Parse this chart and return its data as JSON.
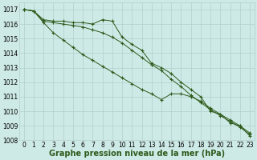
{
  "line1": [
    1017.0,
    1016.9,
    1016.3,
    1016.2,
    1016.2,
    1016.1,
    1016.1,
    1016.0,
    1016.3,
    1016.2,
    1015.1,
    1014.6,
    1014.2,
    1013.3,
    1013.0,
    1012.6,
    1012.0,
    1011.5,
    1011.0,
    1010.0,
    1009.8,
    1009.2,
    1009.0,
    1008.3
  ],
  "line2": [
    1017.0,
    1016.9,
    1016.2,
    1016.1,
    1016.0,
    1015.9,
    1015.8,
    1015.6,
    1015.4,
    1015.1,
    1014.7,
    1014.2,
    1013.7,
    1013.2,
    1012.8,
    1012.2,
    1011.7,
    1011.1,
    1010.6,
    1010.1,
    1009.7,
    1009.3,
    1008.9,
    1008.4
  ],
  "line3": [
    1017.0,
    1016.9,
    1016.1,
    1015.4,
    1014.9,
    1014.4,
    1013.9,
    1013.5,
    1013.1,
    1012.7,
    1012.3,
    1011.9,
    1011.5,
    1011.2,
    1010.8,
    1011.2,
    1011.2,
    1011.0,
    1010.7,
    1010.2,
    1009.8,
    1009.4,
    1009.0,
    1008.5
  ],
  "x": [
    0,
    1,
    2,
    3,
    4,
    5,
    6,
    7,
    8,
    9,
    10,
    11,
    12,
    13,
    14,
    15,
    16,
    17,
    18,
    19,
    20,
    21,
    22,
    23
  ],
  "ylim": [
    1008,
    1017.5
  ],
  "yticks": [
    1008,
    1009,
    1010,
    1011,
    1012,
    1013,
    1014,
    1015,
    1016,
    1017
  ],
  "xtick_labels": [
    "0",
    "1",
    "2",
    "3",
    "4",
    "5",
    "6",
    "7",
    "8",
    "9",
    "10",
    "11",
    "12",
    "13",
    "14",
    "15",
    "16",
    "17",
    "18",
    "19",
    "20",
    "21",
    "22",
    "23"
  ],
  "xlabel": "Graphe pression niveau de la mer (hPa)",
  "line_color": "#2d5a1b",
  "bg_color": "#ceeae6",
  "grid_color": "#b0d0cc",
  "tick_fontsize": 5.5,
  "xlabel_fontsize": 7
}
